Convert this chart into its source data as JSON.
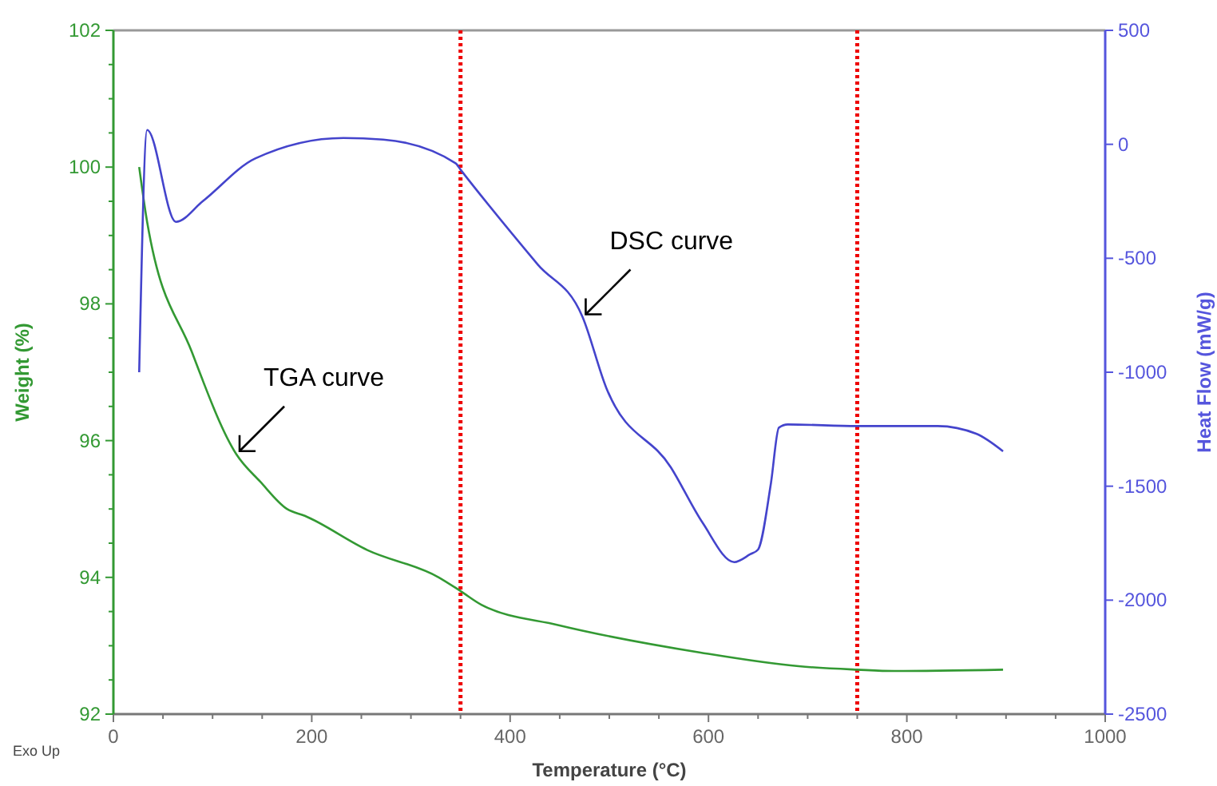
{
  "chart_data": {
    "type": "line",
    "xlabel": "Temperature (°C)",
    "ylabel": "Weight (%)",
    "y2label": "Heat Flow (mW/g)",
    "xlim": [
      0,
      1000
    ],
    "xticks": [
      0,
      {
        "value": 50,
        "label": null
      },
      {
        "value": 100,
        "label": null
      },
      {
        "value": 150,
        "label": null
      },
      200,
      {
        "value": 250,
        "label": null
      },
      {
        "value": 300,
        "label": null
      },
      {
        "value": 350,
        "label": null
      },
      400,
      {
        "value": 450,
        "label": null
      },
      {
        "value": 500,
        "label": null
      },
      {
        "value": 550,
        "label": null
      },
      600,
      {
        "value": 650,
        "label": null
      },
      {
        "value": 700,
        "label": null
      },
      {
        "value": 750,
        "label": null
      },
      800,
      {
        "value": 850,
        "label": null
      },
      {
        "value": 900,
        "label": null
      },
      {
        "value": 950,
        "label": null
      },
      1000
    ],
    "ylim": [
      92,
      102
    ],
    "yticks": [
      92,
      {
        "value": 92.5,
        "label": null
      },
      {
        "value": 93,
        "label": null
      },
      {
        "value": 93.5,
        "label": null
      },
      94,
      {
        "value": 94.5,
        "label": null
      },
      {
        "value": 95,
        "label": null
      },
      {
        "value": 95.5,
        "label": null
      },
      96,
      {
        "value": 96.5,
        "label": null
      },
      {
        "value": 97,
        "label": null
      },
      {
        "value": 97.5,
        "label": null
      },
      98,
      {
        "value": 98.5,
        "label": null
      },
      {
        "value": 99,
        "label": null
      },
      {
        "value": 99.5,
        "label": null
      },
      100,
      {
        "value": 100.5,
        "label": null
      },
      {
        "value": 101,
        "label": null
      },
      {
        "value": 101.5,
        "label": null
      },
      102
    ],
    "y2lim": [
      -2500,
      500
    ],
    "y2ticks": [
      -2500,
      -2000,
      -1500,
      -1000,
      -500,
      0,
      500
    ],
    "grid": false,
    "line_style": "solid",
    "series": [
      {
        "color": "#339933",
        "x": [
          26,
          34,
          79,
          124,
          148,
          175,
          193,
          256,
          328,
          350,
          371,
          449,
          592,
          691,
          750,
          787,
          897
        ],
        "values": [
          100.0,
          99.2,
          97.3,
          95.8,
          95.4,
          95.0,
          94.9,
          94.4,
          94.0,
          93.8,
          93.6,
          93.3,
          92.9,
          92.7,
          92.65,
          92.63,
          92.65
        ]
      },
      {
        "color": "#4444cc",
        "axis": "y2",
        "x": [
          26,
          34,
          63,
          90,
          143,
          232,
          272,
          345,
          350,
          428,
          473,
          497,
          562,
          594,
          626,
          642,
          650,
          663,
          671,
          680,
          750,
          831,
          870,
          897
        ],
        "values": [
          -1000,
          63,
          -340,
          -250,
          -62,
          28,
          21,
          -83,
          -111,
          -528,
          -757,
          -1069,
          -1417,
          -1660,
          -1833,
          -1799,
          -1778,
          -1486,
          -1243,
          -1229,
          -1236,
          -1236,
          -1270,
          -1347
        ]
      }
    ],
    "ref_lines": [
      {
        "axis": "x",
        "value": 350,
        "color": "#ee0000",
        "line_style": "dotted"
      },
      {
        "axis": "x",
        "value": 750,
        "color": "#ee0000",
        "line_style": "dotted"
      }
    ],
    "annotations": [
      {
        "text": "TGA curve",
        "x": 124,
        "y": 95.8
      },
      {
        "text": "DSC curve",
        "x": 473,
        "y": 97.8
      },
      "Exo Up"
    ]
  }
}
